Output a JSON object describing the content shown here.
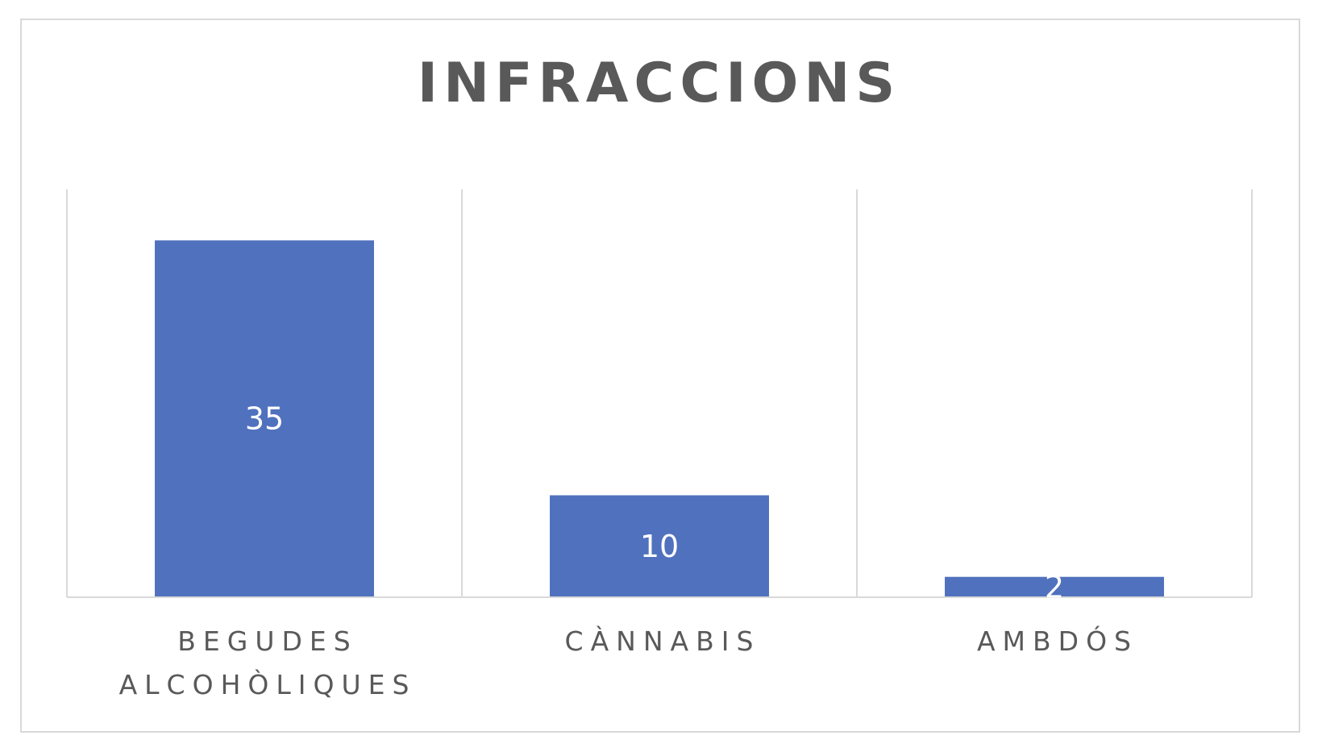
{
  "chart_data": {
    "type": "bar",
    "title": "INFRACCIONS",
    "categories": [
      [
        "BEGUDES",
        "ALCOHÒLIQUES"
      ],
      [
        "CÀNNABIS"
      ],
      [
        "AMBDÓS"
      ]
    ],
    "values": [
      35,
      10,
      2
    ],
    "data_labels": [
      "35",
      "10",
      "2"
    ],
    "ylim": [
      0,
      40
    ],
    "grid": "vertical category separators",
    "legend": "none",
    "colors": {
      "bar": "#5071bd",
      "gridline": "#d9d9d9",
      "text": "#595959",
      "data_label": "#ffffff"
    }
  }
}
